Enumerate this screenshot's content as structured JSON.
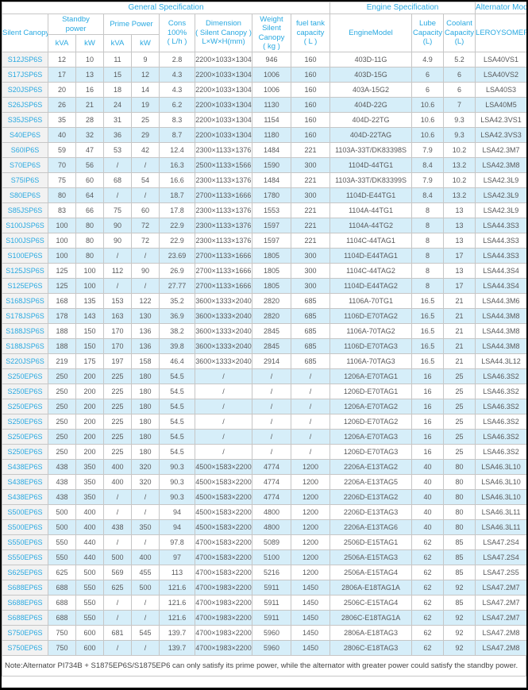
{
  "header": {
    "general_specification": "General Specification",
    "engine_specification": "Engine Specification",
    "alternator_model": "Alternator Model",
    "silent_canopy": "Silent Canopy",
    "standby_power": "Standby\npower",
    "prime_power": "Prime Power",
    "kva": "kVA",
    "kw": "kW",
    "cons": "Cons\n100%\n( L/h )",
    "dimension": "Dimension\n( Silent Canopy )\nL×W×H(mm)",
    "weight": "Weight\nSilent\nCanopy\n( kg )",
    "fuel_tank": "fuel tank\ncapacity\n( L )",
    "engine_model": "EngineModel",
    "lube": "Lube\nCapacity\n(L)",
    "coolant": "Coolant\nCapacity\n(L)",
    "leroysomer": "LEROYSOMER"
  },
  "rows": [
    [
      "S12JSP6S",
      "12",
      "10",
      "11",
      "9",
      "2.8",
      "2200×1033×1304",
      "946",
      "160",
      "403D-11G",
      "4.9",
      "5.2",
      "LSA40VS1"
    ],
    [
      "S17JSP6S",
      "17",
      "13",
      "15",
      "12",
      "4.3",
      "2200×1033×1304",
      "1006",
      "160",
      "403D-15G",
      "6",
      "6",
      "LSA40VS2"
    ],
    [
      "S20JSP6S",
      "20",
      "16",
      "18",
      "14",
      "4.3",
      "2200×1033×1304",
      "1006",
      "160",
      "403A-15G2",
      "6",
      "6",
      "LSA40S3"
    ],
    [
      "S26JSP6S",
      "26",
      "21",
      "24",
      "19",
      "6.2",
      "2200×1033×1304",
      "1130",
      "160",
      "404D-22G",
      "10.6",
      "7",
      "LSA40M5"
    ],
    [
      "S35JSP6S",
      "35",
      "28",
      "31",
      "25",
      "8.3",
      "2200×1033×1304",
      "1154",
      "160",
      "404D-22TG",
      "10.6",
      "9.3",
      "LSA42.3VS1"
    ],
    [
      "S40EP6S",
      "40",
      "32",
      "36",
      "29",
      "8.7",
      "2200×1033×1304",
      "1180",
      "160",
      "404D-22TAG",
      "10.6",
      "9.3",
      "LSA42.3VS3"
    ],
    [
      "S60IP6S",
      "59",
      "47",
      "53",
      "42",
      "12.4",
      "2300×1133×1376",
      "1484",
      "221",
      "1103A-33T/DK83398S",
      "7.9",
      "10.2",
      "LSA42.3M7"
    ],
    [
      "S70EP6S",
      "70",
      "56",
      "/",
      "/",
      "16.3",
      "2500×1133×1566",
      "1590",
      "300",
      "1104D-44TG1",
      "8.4",
      "13.2",
      "LSA42.3M8"
    ],
    [
      "S75IP6S",
      "75",
      "60",
      "68",
      "54",
      "16.6",
      "2300×1133×1376",
      "1484",
      "221",
      "1103A-33T/DK83399S",
      "7.9",
      "10.2",
      "LSA42.3L9"
    ],
    [
      "S80EP6S",
      "80",
      "64",
      "/",
      "/",
      "18.7",
      "2700×1133×1666",
      "1780",
      "300",
      "1104D-E44TG1",
      "8.4",
      "13.2",
      "LSA42.3L9"
    ],
    [
      "S85JSP6S",
      "83",
      "66",
      "75",
      "60",
      "17.8",
      "2300×1133×1376",
      "1553",
      "221",
      "1104A-44TG1",
      "8",
      "13",
      "LSA42.3L9"
    ],
    [
      "S100JSP6S",
      "100",
      "80",
      "90",
      "72",
      "22.9",
      "2300×1133×1376",
      "1597",
      "221",
      "1104A-44TG2",
      "8",
      "13",
      "LSA44.3S3"
    ],
    [
      "S100JSP6S",
      "100",
      "80",
      "90",
      "72",
      "22.9",
      "2300×1133×1376",
      "1597",
      "221",
      "1104C-44TAG1",
      "8",
      "13",
      "LSA44.3S3"
    ],
    [
      "S100EP6S",
      "100",
      "80",
      "/",
      "/",
      "23.69",
      "2700×1133×1666",
      "1805",
      "300",
      "1104D-E44TAG1",
      "8",
      "17",
      "LSA44.3S3"
    ],
    [
      "S125JSP6S",
      "125",
      "100",
      "112",
      "90",
      "26.9",
      "2700×1133×1666",
      "1805",
      "300",
      "1104C-44TAG2",
      "8",
      "13",
      "LSA44.3S4"
    ],
    [
      "S125EP6S",
      "125",
      "100",
      "/",
      "/",
      "27.77",
      "2700×1133×1666",
      "1805",
      "300",
      "1104D-E44TAG2",
      "8",
      "17",
      "LSA44.3S4"
    ],
    [
      "S168JSP6S",
      "168",
      "135",
      "153",
      "122",
      "35.2",
      "3600×1333×2040",
      "2820",
      "685",
      "1106A-70TG1",
      "16.5",
      "21",
      "LSA44.3M6"
    ],
    [
      "S178JSP6S",
      "178",
      "143",
      "163",
      "130",
      "36.9",
      "3600×1333×2040",
      "2820",
      "685",
      "1106D-E70TAG2",
      "16.5",
      "21",
      "LSA44.3M8"
    ],
    [
      "S188JSP6S",
      "188",
      "150",
      "170",
      "136",
      "38.2",
      "3600×1333×2040",
      "2845",
      "685",
      "1106A-70TAG2",
      "16.5",
      "21",
      "LSA44.3M8"
    ],
    [
      "S188JSP6S",
      "188",
      "150",
      "170",
      "136",
      "39.8",
      "3600×1333×2040",
      "2845",
      "685",
      "1106D-E70TAG3",
      "16.5",
      "21",
      "LSA44.3M8"
    ],
    [
      "S220JSP6S",
      "219",
      "175",
      "197",
      "158",
      "46.4",
      "3600×1333×2040",
      "2914",
      "685",
      "1106A-70TAG3",
      "16.5",
      "21",
      "LSA44.3L12"
    ],
    [
      "S250EP6S",
      "250",
      "200",
      "225",
      "180",
      "54.5",
      "/",
      "/",
      "/",
      "1206A-E70TAG1",
      "16",
      "25",
      "LSA46.3S2"
    ],
    [
      "S250EP6S",
      "250",
      "200",
      "225",
      "180",
      "54.5",
      "/",
      "/",
      "/",
      "1206D-E70TAG1",
      "16",
      "25",
      "LSA46.3S2"
    ],
    [
      "S250EP6S",
      "250",
      "200",
      "225",
      "180",
      "54.5",
      "/",
      "/",
      "/",
      "1206A-E70TAG2",
      "16",
      "25",
      "LSA46.3S2"
    ],
    [
      "S250EP6S",
      "250",
      "200",
      "225",
      "180",
      "54.5",
      "/",
      "/",
      "/",
      "1206D-E70TAG2",
      "16",
      "25",
      "LSA46.3S2"
    ],
    [
      "S250EP6S",
      "250",
      "200",
      "225",
      "180",
      "54.5",
      "/",
      "/",
      "/",
      "1206A-E70TAG3",
      "16",
      "25",
      "LSA46.3S2"
    ],
    [
      "S250EP6S",
      "250",
      "200",
      "225",
      "180",
      "54.5",
      "/",
      "/",
      "/",
      "1206D-E70TAG3",
      "16",
      "25",
      "LSA46.3S2"
    ],
    [
      "S438EP6S",
      "438",
      "350",
      "400",
      "320",
      "90.3",
      "4500×1583×2200",
      "4774",
      "1200",
      "2206A-E13TAG2",
      "40",
      "80",
      "LSA46.3L10"
    ],
    [
      "S438EP6S",
      "438",
      "350",
      "400",
      "320",
      "90.3",
      "4500×1583×2200",
      "4774",
      "1200",
      "2206A-E13TAG5",
      "40",
      "80",
      "LSA46.3L10"
    ],
    [
      "S438EP6S",
      "438",
      "350",
      "/",
      "/",
      "90.3",
      "4500×1583×2200",
      "4774",
      "1200",
      "2206D-E13TAG2",
      "40",
      "80",
      "LSA46.3L10"
    ],
    [
      "S500EP6S",
      "500",
      "400",
      "/",
      "/",
      "94",
      "4500×1583×2200",
      "4800",
      "1200",
      "2206D-E13TAG3",
      "40",
      "80",
      "LSA46.3L11"
    ],
    [
      "S500EP6S",
      "500",
      "400",
      "438",
      "350",
      "94",
      "4500×1583×2200",
      "4800",
      "1200",
      "2206A-E13TAG6",
      "40",
      "80",
      "LSA46.3L11"
    ],
    [
      "S550EP6S",
      "550",
      "440",
      "/",
      "/",
      "97.8",
      "4700×1583×2200",
      "5089",
      "1200",
      "2506D-E15TAG1",
      "62",
      "85",
      "LSA47.2S4"
    ],
    [
      "S550EP6S",
      "550",
      "440",
      "500",
      "400",
      "97",
      "4700×1583×2200",
      "5100",
      "1200",
      "2506A-E15TAG3",
      "62",
      "85",
      "LSA47.2S4"
    ],
    [
      "S625EP6S",
      "625",
      "500",
      "569",
      "455",
      "113",
      "4700×1583×2200",
      "5216",
      "1200",
      "2506A-E15TAG4",
      "62",
      "85",
      "LSA47.2S5"
    ],
    [
      "S688EP6S",
      "688",
      "550",
      "625",
      "500",
      "121.6",
      "4700×1983×2200",
      "5911",
      "1450",
      "2806A-E18TAG1A",
      "62",
      "92",
      "LSA47.2M7"
    ],
    [
      "S688EP6S",
      "688",
      "550",
      "/",
      "/",
      "121.6",
      "4700×1983×2200",
      "5911",
      "1450",
      "2506C-E15TAG4",
      "62",
      "85",
      "LSA47.2M7"
    ],
    [
      "S688EP6S",
      "688",
      "550",
      "/",
      "/",
      "121.6",
      "4700×1983×2200",
      "5911",
      "1450",
      "2806C-E18TAG1A",
      "62",
      "92",
      "LSA47.2M7"
    ],
    [
      "S750EP6S",
      "750",
      "600",
      "681",
      "545",
      "139.7",
      "4700×1983×2200",
      "5960",
      "1450",
      "2806A-E18TAG3",
      "62",
      "92",
      "LSA47.2M8"
    ],
    [
      "S750EP6S",
      "750",
      "600",
      "/",
      "/",
      "139.7",
      "4700×1983×2200",
      "5960",
      "1450",
      "2806C-E18TAG3",
      "62",
      "92",
      "LSA47.2M8"
    ]
  ],
  "note": "Note:Alternator PI734B + S1875EP6S/S1875EP6 can only satisfy its prime power, while the alternator with greater power could satisfy the standby power.",
  "colors": {
    "accent": "#29A9E1",
    "rowAlt": "#D6EEF9",
    "firstColBg": "#F2F2F2",
    "borderColor": "#C6C6C6",
    "frameColor": "#000000",
    "textColor": "#58595B"
  }
}
